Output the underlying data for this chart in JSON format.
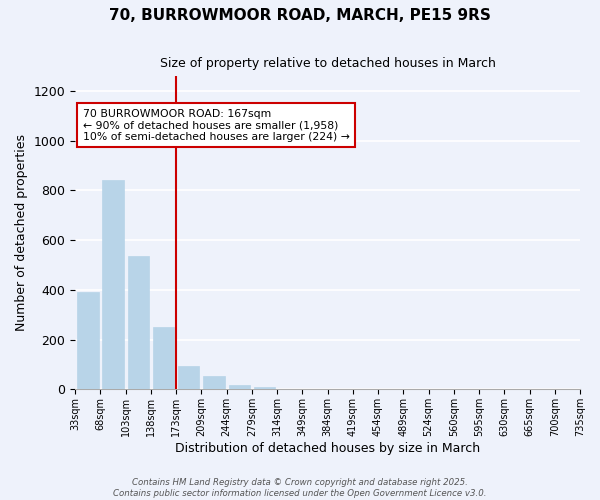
{
  "title": "70, BURROWMOOR ROAD, MARCH, PE15 9RS",
  "subtitle": "Size of property relative to detached houses in March",
  "xlabel": "Distribution of detached houses by size in March",
  "ylabel": "Number of detached properties",
  "bin_labels": [
    "33sqm",
    "68sqm",
    "103sqm",
    "138sqm",
    "173sqm",
    "209sqm",
    "244sqm",
    "279sqm",
    "314sqm",
    "349sqm",
    "384sqm",
    "419sqm",
    "454sqm",
    "489sqm",
    "524sqm",
    "560sqm",
    "595sqm",
    "630sqm",
    "665sqm",
    "700sqm",
    "735sqm"
  ],
  "bar_values": [
    390,
    840,
    535,
    250,
    95,
    52,
    18,
    8,
    3,
    1,
    0,
    0,
    0,
    0,
    0,
    0,
    0,
    0,
    0,
    0
  ],
  "bar_color": "#b8d4e8",
  "property_line_index": 4,
  "property_line_color": "#cc0000",
  "ylim": [
    0,
    1260
  ],
  "yticks": [
    0,
    200,
    400,
    600,
    800,
    1000,
    1200
  ],
  "annotation_line1": "70 BURROWMOOR ROAD: 167sqm",
  "annotation_line2": "← 90% of detached houses are smaller (1,958)",
  "annotation_line3": "10% of semi-detached houses are larger (224) →",
  "background_color": "#eef2fb",
  "grid_color": "#ffffff",
  "footer_line1": "Contains HM Land Registry data © Crown copyright and database right 2025.",
  "footer_line2": "Contains public sector information licensed under the Open Government Licence v3.0."
}
